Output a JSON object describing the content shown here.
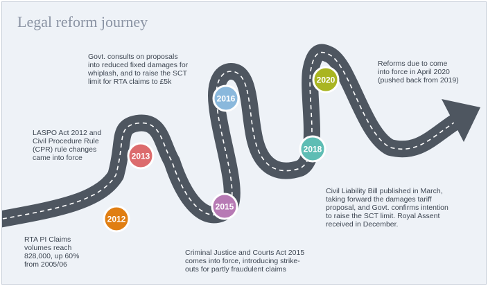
{
  "title": "Legal reform journey",
  "milestones": [
    {
      "year": "2012",
      "color": "#e07e12",
      "text": "RTA PI Claims\nvolumes reach\n828,000, up 60%\nfrom 2005/06"
    },
    {
      "year": "2013",
      "color": "#dc6b6d",
      "text": "LASPO Act 2012 and\nCivil Procedure Rule\n(CPR) rule changes\ncame into force"
    },
    {
      "year": "2015",
      "color": "#b77ab4",
      "text": "Criminal Justice and Courts Act 2015\ncomes into force, introducing strike-\nouts for partly fraudulent claims"
    },
    {
      "year": "2016",
      "color": "#8ab8dc",
      "text": "Govt. consults on proposals\ninto reduced fixed damages for\nwhiplash, and to raise the SCT\nlimit for RTA claims to £5k"
    },
    {
      "year": "2018",
      "color": "#5ebdb4",
      "text": "Civil Liability Bill published in March,\ntaking forward the damages tariff\nproposal, and Govt. confirms intention\nto raise the SCT limit. Royal Assent\nreceived in December."
    },
    {
      "year": "2020",
      "color": "#a9b521",
      "text": "Reforms due to come\ninto force in April 2020\n(pushed back from 2019)"
    }
  ],
  "colors": {
    "road": "#4e5660",
    "lane": "#ffffff",
    "background": "#eef2f7"
  }
}
